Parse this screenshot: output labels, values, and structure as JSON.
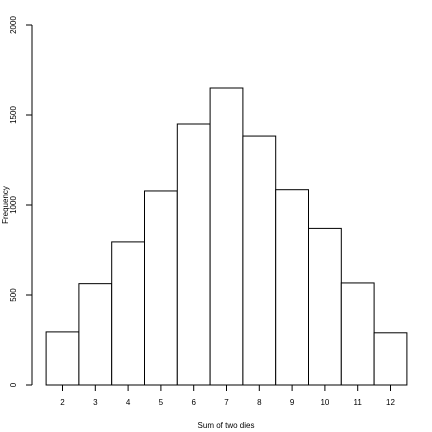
{
  "chart_data": {
    "type": "bar",
    "title": "",
    "xlabel": "Sum of two dies",
    "ylabel": "Frequency",
    "categories": [
      "2",
      "3",
      "4",
      "5",
      "6",
      "7",
      "8",
      "9",
      "10",
      "11",
      "12"
    ],
    "values": [
      295,
      563,
      795,
      1078,
      1450,
      1650,
      1383,
      1085,
      870,
      567,
      290
    ],
    "ylim": [
      0,
      2000
    ],
    "yticks": [
      "0",
      "500",
      "1000",
      "1500",
      "2000"
    ],
    "grid": false,
    "legend": "none"
  }
}
